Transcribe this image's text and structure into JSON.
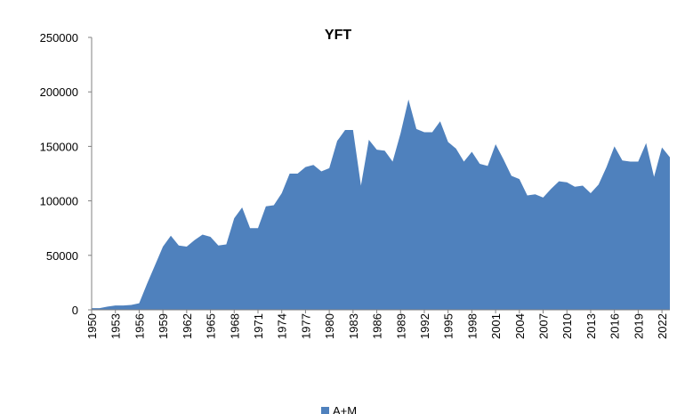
{
  "chart_data": {
    "type": "area",
    "title": "YFT",
    "xlabel": "",
    "ylabel": "",
    "ylim": [
      0,
      250000
    ],
    "y_ticks": [
      "0",
      "50000",
      "100000",
      "150000",
      "200000",
      "250000"
    ],
    "x_tick_labels": [
      "1950",
      "1953",
      "1956",
      "1959",
      "1962",
      "1965",
      "1968",
      "1971",
      "1974",
      "1977",
      "1980",
      "1983",
      "1986",
      "1989",
      "1992",
      "1995",
      "1998",
      "2001",
      "2004",
      "2007",
      "2010",
      "2013",
      "2016",
      "2019",
      "2022"
    ],
    "grid": false,
    "legend_position": "bottom",
    "colors": {
      "series": "#4F81BD"
    },
    "x": [
      1950,
      1951,
      1952,
      1953,
      1954,
      1955,
      1956,
      1957,
      1958,
      1959,
      1960,
      1961,
      1962,
      1963,
      1964,
      1965,
      1966,
      1967,
      1968,
      1969,
      1970,
      1971,
      1972,
      1973,
      1974,
      1975,
      1976,
      1977,
      1978,
      1979,
      1980,
      1981,
      1982,
      1983,
      1984,
      1985,
      1986,
      1987,
      1988,
      1989,
      1990,
      1991,
      1992,
      1993,
      1994,
      1995,
      1996,
      1997,
      1998,
      1999,
      2000,
      2001,
      2002,
      2003,
      2004,
      2005,
      2006,
      2007,
      2008,
      2009,
      2010,
      2011,
      2012,
      2013,
      2014,
      2015,
      2016,
      2017,
      2018,
      2019,
      2020,
      2021,
      2022,
      2023
    ],
    "series": [
      {
        "name": "A+M",
        "values": [
          1500,
          1500,
          3000,
          4000,
          4000,
          4500,
          6000,
          24000,
          41000,
          58000,
          68000,
          59000,
          58000,
          64000,
          69000,
          67000,
          59000,
          60000,
          84000,
          94000,
          75000,
          75000,
          95000,
          96000,
          107000,
          125000,
          125000,
          131000,
          133000,
          127000,
          130000,
          155000,
          165000,
          165000,
          114000,
          156000,
          147000,
          146000,
          136000,
          162000,
          193000,
          166000,
          163000,
          163000,
          173000,
          154000,
          148000,
          136000,
          145000,
          134000,
          132000,
          152000,
          138000,
          123000,
          120000,
          105000,
          106000,
          103000,
          111000,
          118000,
          117000,
          113000,
          114000,
          107000,
          115000,
          131000,
          150000,
          137000,
          136000,
          136000,
          153000,
          122000,
          149000,
          140000
        ]
      }
    ]
  }
}
